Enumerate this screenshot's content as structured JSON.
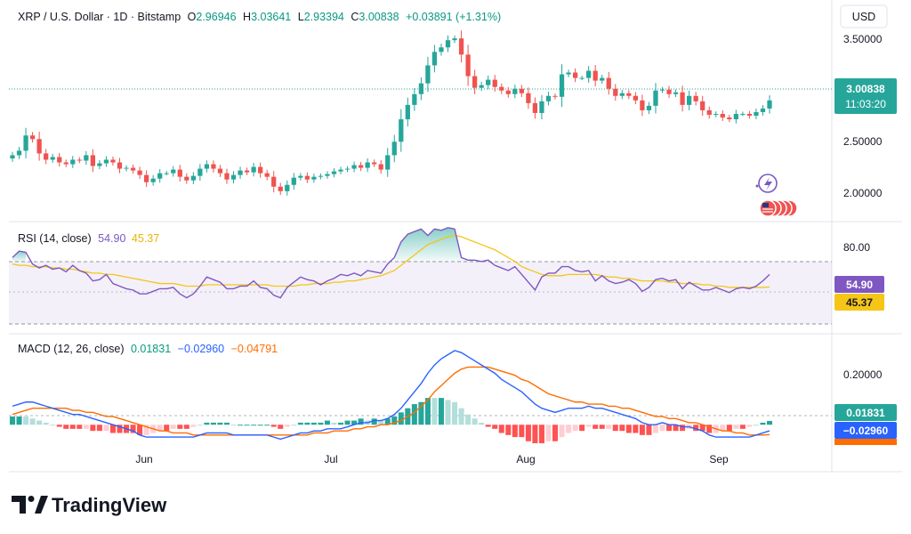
{
  "header": {
    "symbol": "XRP / U.S. Dollar · 1D · Bitstamp",
    "o_label": "O",
    "o_value": "2.96946",
    "h_label": "H",
    "h_value": "3.03641",
    "l_label": "L",
    "l_value": "2.93394",
    "c_label": "C",
    "c_value": "3.00838",
    "change": "+0.03891 (+1.31%)"
  },
  "currency": "USD",
  "price_axis": [
    "3.50000",
    "2.50000",
    "2.00000"
  ],
  "last_price": "3.00838",
  "countdown": "11:03:20",
  "rsi": {
    "title": "RSI (14, close)",
    "value": "54.90",
    "ma_value": "45.37",
    "axis": [
      "80.00"
    ]
  },
  "macd": {
    "title": "MACD (12, 26, close)",
    "hist_value": "0.01831",
    "macd_value": "−0.02960",
    "signal_value": "−0.04791",
    "axis": [
      "0.20000"
    ]
  },
  "time_axis": [
    "Jun",
    "Jul",
    "Aug",
    "Sep"
  ],
  "brand": "TradingView",
  "colors": {
    "up": "#26a69a",
    "down": "#ef5350",
    "rsi": "#7e57c2",
    "rsi_ma": "#f5c518",
    "macd": "#2962ff",
    "signal": "#ff6d00",
    "accent_text": "#089981"
  },
  "chart_data": {
    "type": "candlestick",
    "symbol": "XRP / U.S. Dollar",
    "interval": "1D",
    "last_close": 3.00838,
    "price_range": [
      1.8,
      3.85
    ],
    "price_series": [
      2.4,
      2.45,
      2.62,
      2.58,
      2.42,
      2.35,
      2.38,
      2.32,
      2.3,
      2.35,
      2.34,
      2.4,
      2.28,
      2.31,
      2.35,
      2.32,
      2.25,
      2.26,
      2.23,
      2.18,
      2.1,
      2.14,
      2.2,
      2.2,
      2.24,
      2.16,
      2.12,
      2.17,
      2.25,
      2.3,
      2.25,
      2.2,
      2.13,
      2.18,
      2.23,
      2.21,
      2.27,
      2.2,
      2.16,
      2.05,
      2.0,
      2.07,
      2.15,
      2.17,
      2.13,
      2.16,
      2.17,
      2.19,
      2.22,
      2.24,
      2.25,
      2.29,
      2.26,
      2.32,
      2.3,
      2.24,
      2.4,
      2.55,
      2.8,
      2.96,
      3.08,
      3.2,
      3.4,
      3.55,
      3.6,
      3.68,
      3.7,
      3.52,
      3.28,
      3.15,
      3.18,
      3.24,
      3.16,
      3.12,
      3.08,
      3.14,
      3.09,
      2.98,
      2.87,
      3.0,
      3.06,
      3.05,
      3.3,
      3.32,
      3.26,
      3.26,
      3.34,
      3.23,
      3.26,
      3.14,
      3.06,
      3.09,
      3.06,
      3.01,
      2.9,
      2.95,
      3.12,
      3.13,
      3.08,
      3.1,
      2.96,
      3.06,
      3.0,
      2.9,
      2.85,
      2.86,
      2.82,
      2.8,
      2.86,
      2.86,
      2.84,
      2.88,
      2.92,
      3.01
    ],
    "rsi_series": [
      68,
      73,
      72,
      63,
      60,
      62,
      59,
      60,
      57,
      62,
      58,
      56,
      50,
      51,
      55,
      48,
      46,
      44,
      43,
      40,
      40,
      42,
      44,
      44,
      45,
      40,
      37,
      40,
      46,
      53,
      51,
      49,
      44,
      44,
      46,
      46,
      50,
      45,
      44,
      39,
      37,
      45,
      49,
      53,
      51,
      50,
      47,
      50,
      52,
      55,
      54,
      56,
      54,
      58,
      57,
      56,
      63,
      68,
      80,
      86,
      88,
      90,
      85,
      90,
      89,
      91,
      90,
      68,
      66,
      66,
      65,
      66,
      62,
      60,
      58,
      61,
      55,
      49,
      43,
      53,
      56,
      56,
      61,
      61,
      58,
      57,
      58,
      50,
      54,
      50,
      48,
      49,
      51,
      48,
      42,
      45,
      51,
      52,
      50,
      51,
      44,
      49,
      46,
      43,
      43,
      45,
      43,
      41,
      44,
      45,
      44,
      46,
      50,
      55
    ],
    "rsi_ma_series": [
      63,
      62,
      62,
      61,
      61,
      61,
      60,
      60,
      59,
      59,
      58,
      57,
      56,
      56,
      55,
      55,
      54,
      53,
      52,
      51,
      50,
      49,
      48,
      48,
      48,
      47,
      46,
      46,
      46,
      47,
      47,
      47,
      47,
      47,
      47,
      47,
      47,
      47,
      47,
      46,
      46,
      46,
      46,
      47,
      47,
      48,
      48,
      48,
      49,
      49,
      50,
      50,
      51,
      52,
      53,
      54,
      56,
      58,
      62,
      66,
      70,
      74,
      78,
      80,
      82,
      84,
      85,
      84,
      82,
      80,
      78,
      76,
      74,
      71,
      68,
      65,
      61,
      59,
      57,
      55,
      54,
      54,
      54,
      55,
      55,
      55,
      55,
      55,
      54,
      53,
      53,
      52,
      52,
      51,
      50,
      50,
      50,
      50,
      49,
      49,
      48,
      48,
      48,
      47,
      47,
      46,
      46,
      45,
      45,
      45,
      45,
      45,
      45,
      45.37
    ],
    "rsi_range": [
      10,
      95
    ],
    "macd_series": [
      0.09,
      0.1,
      0.11,
      0.11,
      0.1,
      0.09,
      0.08,
      0.07,
      0.06,
      0.05,
      0.05,
      0.04,
      0.03,
      0.02,
      0.01,
      0.0,
      -0.01,
      -0.02,
      -0.03,
      -0.05,
      -0.06,
      -0.06,
      -0.06,
      -0.06,
      -0.06,
      -0.06,
      -0.06,
      -0.06,
      -0.05,
      -0.04,
      -0.04,
      -0.04,
      -0.04,
      -0.05,
      -0.05,
      -0.05,
      -0.05,
      -0.05,
      -0.05,
      -0.06,
      -0.07,
      -0.06,
      -0.05,
      -0.04,
      -0.04,
      -0.03,
      -0.03,
      -0.02,
      -0.02,
      -0.02,
      -0.01,
      0.0,
      0.01,
      0.01,
      0.02,
      0.02,
      0.03,
      0.05,
      0.08,
      0.12,
      0.16,
      0.2,
      0.25,
      0.29,
      0.32,
      0.34,
      0.36,
      0.35,
      0.33,
      0.31,
      0.29,
      0.27,
      0.25,
      0.22,
      0.2,
      0.18,
      0.16,
      0.13,
      0.1,
      0.08,
      0.07,
      0.06,
      0.07,
      0.08,
      0.08,
      0.08,
      0.09,
      0.08,
      0.08,
      0.07,
      0.06,
      0.05,
      0.04,
      0.03,
      0.01,
      0.0,
      0.0,
      0.01,
      0.0,
      0.0,
      -0.01,
      -0.01,
      -0.02,
      -0.03,
      -0.05,
      -0.06,
      -0.06,
      -0.06,
      -0.06,
      -0.06,
      -0.06,
      -0.05,
      -0.04,
      -0.0296
    ],
    "signal_series": [
      0.05,
      0.06,
      0.07,
      0.08,
      0.08,
      0.08,
      0.08,
      0.08,
      0.08,
      0.07,
      0.07,
      0.06,
      0.06,
      0.05,
      0.04,
      0.04,
      0.03,
      0.02,
      0.01,
      0.0,
      -0.01,
      -0.02,
      -0.03,
      -0.03,
      -0.04,
      -0.04,
      -0.04,
      -0.05,
      -0.05,
      -0.05,
      -0.05,
      -0.05,
      -0.05,
      -0.05,
      -0.05,
      -0.05,
      -0.05,
      -0.05,
      -0.05,
      -0.05,
      -0.05,
      -0.05,
      -0.05,
      -0.05,
      -0.05,
      -0.04,
      -0.04,
      -0.04,
      -0.03,
      -0.03,
      -0.03,
      -0.02,
      -0.02,
      -0.01,
      -0.01,
      0.0,
      0.0,
      0.01,
      0.02,
      0.04,
      0.06,
      0.09,
      0.12,
      0.16,
      0.19,
      0.22,
      0.25,
      0.27,
      0.28,
      0.28,
      0.28,
      0.28,
      0.27,
      0.26,
      0.25,
      0.24,
      0.22,
      0.21,
      0.19,
      0.17,
      0.15,
      0.14,
      0.13,
      0.12,
      0.11,
      0.11,
      0.1,
      0.1,
      0.1,
      0.09,
      0.09,
      0.08,
      0.08,
      0.07,
      0.06,
      0.05,
      0.04,
      0.04,
      0.03,
      0.03,
      0.02,
      0.01,
      0.01,
      0.0,
      -0.01,
      -0.02,
      -0.03,
      -0.03,
      -0.04,
      -0.04,
      -0.05,
      -0.05,
      -0.05,
      -0.04791
    ],
    "macd_range": [
      -0.12,
      0.42
    ]
  }
}
